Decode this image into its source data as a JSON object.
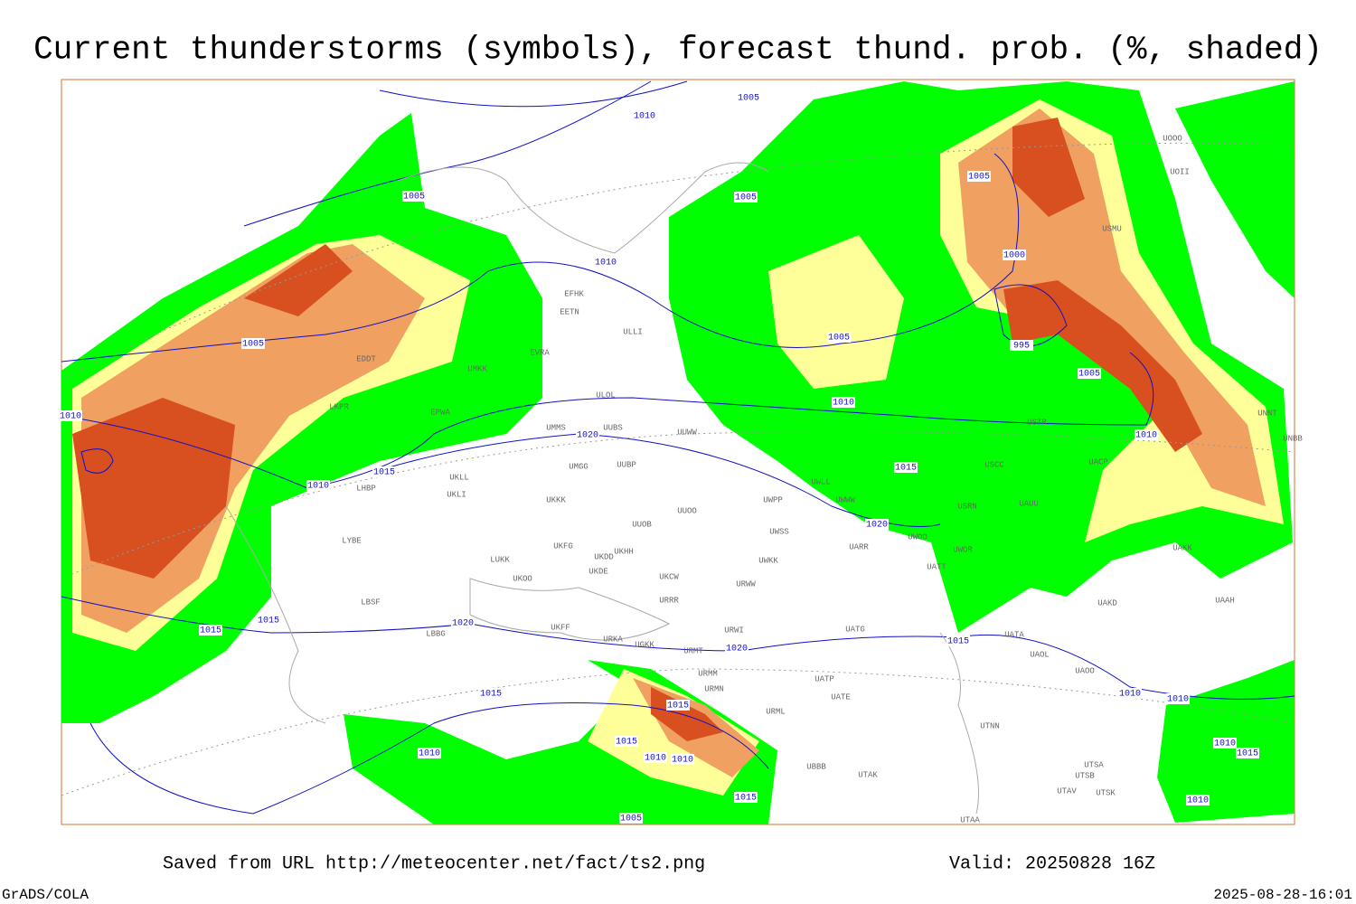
{
  "header": {
    "title": "Current thunderstorms (symbols), forecast thund. prob. (%, shaded)"
  },
  "footer": {
    "source": "Saved from URL http://meteocenter.net/fact/ts2.png",
    "valid": "Valid: 20250828 16Z",
    "software": "GrADS/COLA",
    "timestamp": "2025-08-28-16:01"
  },
  "stations": [
    "EFHK",
    "EETN",
    "EVRA",
    "ULLI",
    "ULOL",
    "UMMS",
    "UUBS",
    "UUWW",
    "UMGG",
    "UUBP",
    "UKLL",
    "UKLI",
    "UKKK",
    "UUOB",
    "UUOO",
    "UWPP",
    "UWWW",
    "UWLL",
    "UWSS",
    "UARR",
    "UWKK",
    "URWW",
    "UKHH",
    "UKDD",
    "UKFG",
    "UKDE",
    "UKCW",
    "URRR",
    "UKOO",
    "LUKK",
    "LBSF",
    "LBBG",
    "UKFF",
    "URKA",
    "UGKK",
    "URMT",
    "URWI",
    "UATG",
    "UATA",
    "UAOL",
    "UAOO",
    "UATT",
    "UWOR",
    "UWOO",
    "USRN",
    "UAUU",
    "USCC",
    "USTR",
    "UACP",
    "UAKK",
    "UAKD",
    "UAAH",
    "UNBB",
    "UNNT",
    "USMU",
    "UOOO",
    "UOII",
    "EPWA",
    "LKPR",
    "LHBP",
    "LYBE",
    "EDDT",
    "UMKK",
    "URMM",
    "URMN",
    "URML",
    "UATE",
    "UATP",
    "UTNN",
    "UTAK",
    "UBBB",
    "UTSA",
    "UTSB",
    "UTAV",
    "UTSK",
    "UTAA"
  ],
  "isobar_labels": [
    1010,
    1005,
    1005,
    1005,
    1005,
    1000,
    995,
    1005,
    1005,
    1005,
    1010,
    1010,
    1010,
    1010,
    1015,
    1015,
    1010,
    1020,
    1020,
    1015,
    1015,
    1020,
    1020,
    1015,
    1015,
    1015,
    1015,
    1010,
    1010,
    1010,
    1005,
    1010,
    1010,
    1010,
    1015,
    1015,
    1010
  ]
}
